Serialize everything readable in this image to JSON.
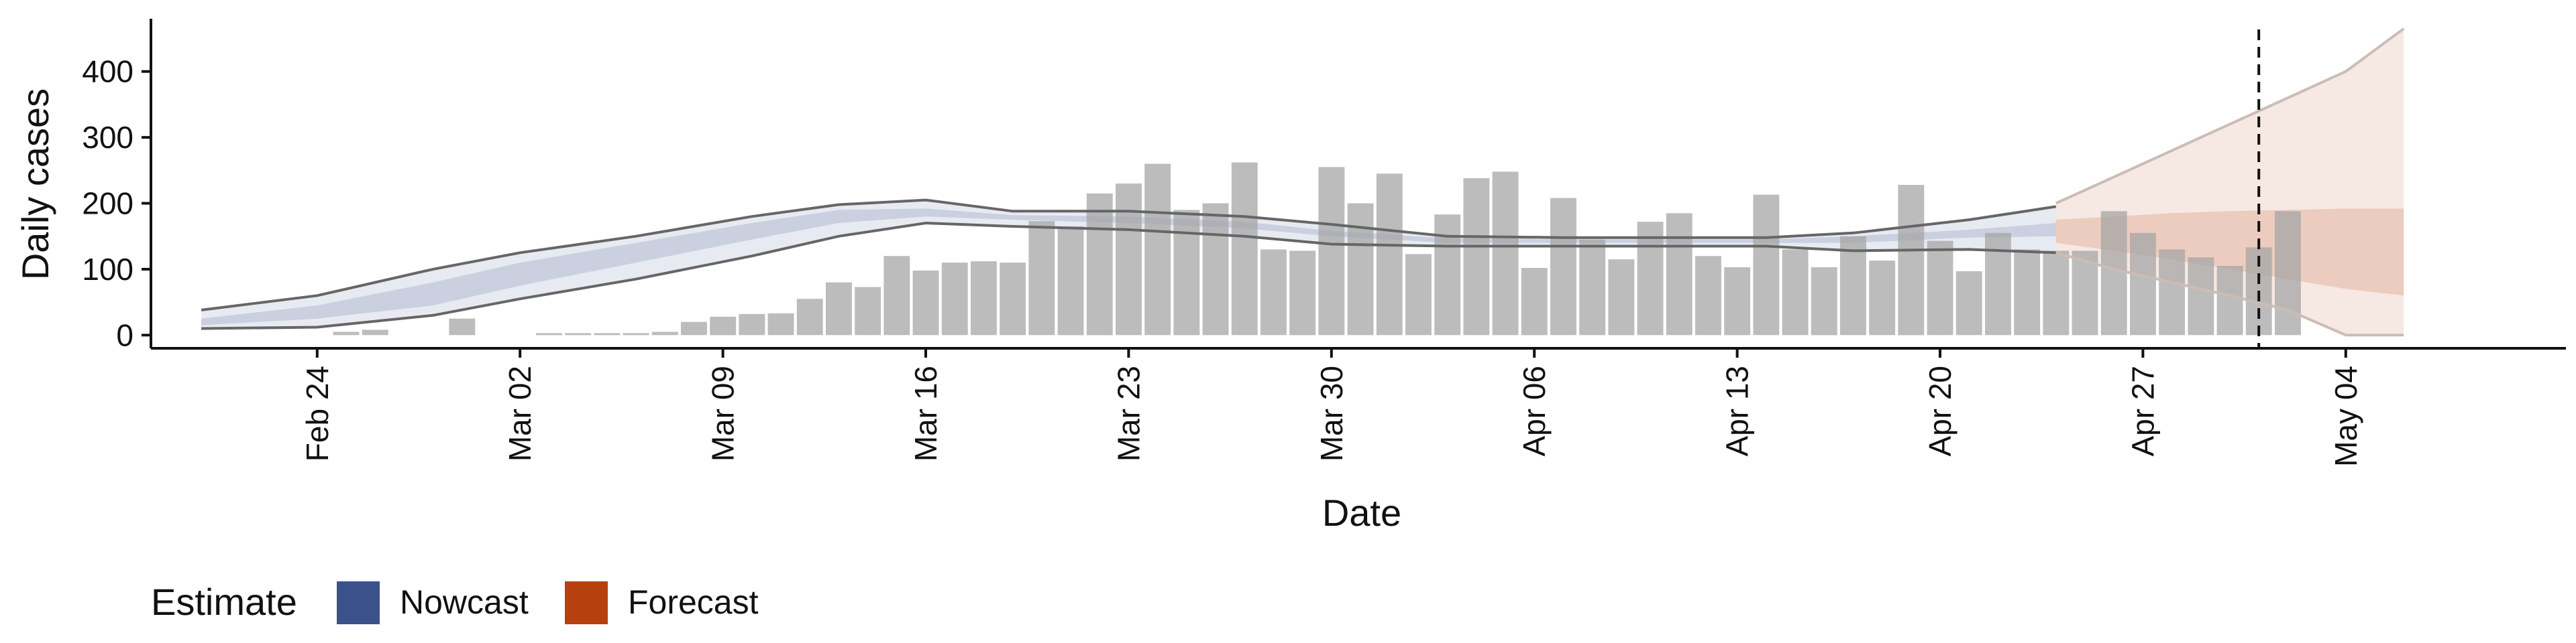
{
  "chart_data": {
    "type": "bar",
    "xlabel": "Date",
    "ylabel": "Daily cases",
    "ylim": [
      -20,
      480
    ],
    "y_ticks": [
      0,
      100,
      200,
      300,
      400
    ],
    "x_start_date": "2020-02-20",
    "x_ticks": [
      {
        "date": "2020-02-24",
        "label": "Feb 24"
      },
      {
        "date": "2020-03-02",
        "label": "Mar 02"
      },
      {
        "date": "2020-03-09",
        "label": "Mar 09"
      },
      {
        "date": "2020-03-16",
        "label": "Mar 16"
      },
      {
        "date": "2020-03-23",
        "label": "Mar 23"
      },
      {
        "date": "2020-03-30",
        "label": "Mar 30"
      },
      {
        "date": "2020-04-06",
        "label": "Apr 06"
      },
      {
        "date": "2020-04-13",
        "label": "Apr 13"
      },
      {
        "date": "2020-04-20",
        "label": "Apr 20"
      },
      {
        "date": "2020-04-27",
        "label": "Apr 27"
      },
      {
        "date": "2020-05-04",
        "label": "May 04"
      }
    ],
    "bars_start_date": "2020-02-25",
    "bar_values": [
      5,
      8,
      0,
      0,
      25,
      0,
      0,
      3,
      3,
      3,
      3,
      5,
      20,
      28,
      32,
      33,
      55,
      80,
      73,
      120,
      98,
      110,
      112,
      110,
      173,
      165,
      215,
      230,
      260,
      190,
      200,
      262,
      130,
      128,
      255,
      200,
      245,
      123,
      183,
      238,
      248,
      102,
      208,
      145,
      115,
      172,
      185,
      120,
      103,
      213,
      130,
      103,
      150,
      113,
      228,
      143,
      97,
      155,
      130,
      128,
      128,
      188,
      155,
      130,
      118,
      105,
      133,
      188
    ],
    "band_dates": [
      "2020-02-20",
      "2020-02-24",
      "2020-02-28",
      "2020-03-02",
      "2020-03-06",
      "2020-03-10",
      "2020-03-13",
      "2020-03-16",
      "2020-03-19",
      "2020-03-23",
      "2020-03-27",
      "2020-03-30",
      "2020-04-03",
      "2020-04-07",
      "2020-04-10",
      "2020-04-14",
      "2020-04-17",
      "2020-04-21",
      "2020-04-24",
      "2020-04-26",
      "2020-04-28",
      "2020-04-30",
      "2020-05-02",
      "2020-05-04",
      "2020-05-06"
    ],
    "series": [
      {
        "name": "Nowcast",
        "color": "#3b5189",
        "dates_from": "2020-02-20",
        "dates_to": "2020-04-24",
        "lower90": [
          10,
          12,
          30,
          55,
          85,
          120,
          150,
          170,
          165,
          160,
          150,
          138,
          135,
          135,
          135,
          135,
          128,
          130,
          125
        ],
        "upper90": [
          38,
          60,
          100,
          125,
          150,
          180,
          198,
          205,
          188,
          188,
          180,
          168,
          150,
          148,
          148,
          148,
          155,
          175,
          195
        ],
        "lower50": [
          15,
          25,
          45,
          75,
          110,
          145,
          170,
          180,
          175,
          170,
          162,
          150,
          140,
          140,
          140,
          140,
          140,
          148,
          150
        ],
        "upper50": [
          25,
          45,
          80,
          110,
          140,
          170,
          190,
          192,
          182,
          180,
          172,
          158,
          147,
          145,
          145,
          145,
          150,
          160,
          170
        ]
      },
      {
        "name": "Forecast",
        "color": "#b7410e",
        "dates_from": "2020-04-24",
        "dates_to": "2020-05-06",
        "lower90": [
          125,
          100,
          80,
          60,
          38,
          0,
          0
        ],
        "upper90": [
          200,
          240,
          280,
          320,
          360,
          400,
          465
        ],
        "lower50": [
          140,
          128,
          115,
          100,
          85,
          70,
          60
        ],
        "upper50": [
          175,
          180,
          185,
          188,
          190,
          192,
          192
        ]
      }
    ],
    "vline_date": "2020-05-01",
    "legend": {
      "title": "Estimate",
      "position": "bottom-left",
      "items": [
        {
          "label": "Nowcast",
          "color": "#3b5189"
        },
        {
          "label": "Forecast",
          "color": "#b7410e"
        }
      ]
    }
  }
}
